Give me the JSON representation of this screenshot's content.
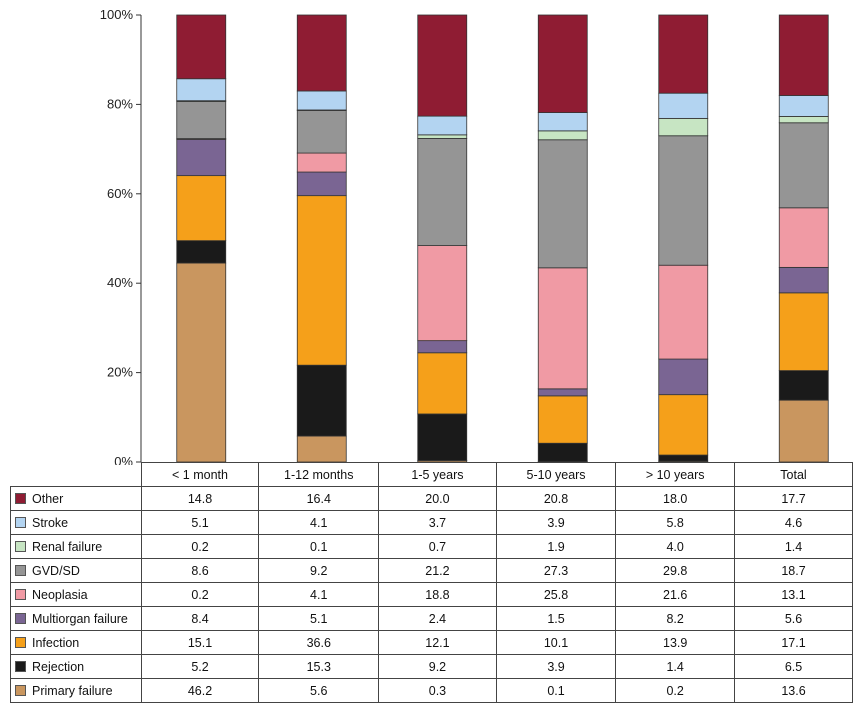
{
  "chart_data": {
    "type": "bar",
    "stacked": true,
    "percent_stacked": true,
    "categories": [
      "< 1 month",
      "1-12 months",
      "1-5 years",
      "5-10 years",
      "> 10 years",
      "Total"
    ],
    "y_ticks": [
      "0%",
      "20%",
      "40%",
      "60%",
      "80%",
      "100%"
    ],
    "ylim": [
      0,
      100
    ],
    "grid": false,
    "legend": "table-left",
    "series": [
      {
        "name": "Primary failure",
        "color": "#c9965f",
        "values": [
          "46.2",
          "5.6",
          "0.3",
          "0.1",
          "0.2",
          "13.6"
        ]
      },
      {
        "name": "Rejection",
        "color": "#1a1a1a",
        "values": [
          "5.2",
          "15.3",
          "9.2",
          "3.9",
          "1.4",
          "6.5"
        ]
      },
      {
        "name": "Infection",
        "color": "#f5a01a",
        "values": [
          "15.1",
          "36.6",
          "12.1",
          "10.1",
          "13.9",
          "17.1"
        ]
      },
      {
        "name": "Multiorgan failure",
        "color": "#7a6593",
        "values": [
          "8.4",
          "5.1",
          "2.4",
          "1.5",
          "8.2",
          "5.6"
        ]
      },
      {
        "name": "Neoplasia",
        "color": "#f09aa4",
        "values": [
          "0.2",
          "4.1",
          "18.8",
          "25.8",
          "21.6",
          "13.1"
        ]
      },
      {
        "name": "GVD/SD",
        "color": "#959595",
        "values": [
          "8.6",
          "9.2",
          "21.2",
          "27.3",
          "29.8",
          "18.7"
        ]
      },
      {
        "name": "Renal failure",
        "color": "#c7e5c3",
        "values": [
          "0.2",
          "0.1",
          "0.7",
          "1.9",
          "4.0",
          "1.4"
        ]
      },
      {
        "name": "Stroke",
        "color": "#b3d4f1",
        "values": [
          "5.1",
          "4.1",
          "3.7",
          "3.9",
          "5.8",
          "4.6"
        ]
      },
      {
        "name": "Other",
        "color": "#8f1c33",
        "values": [
          "14.8",
          "16.4",
          "20.0",
          "20.8",
          "18.0",
          "17.7"
        ]
      }
    ],
    "table_row_order": [
      "Other",
      "Stroke",
      "Renal failure",
      "GVD/SD",
      "Neoplasia",
      "Multiorgan failure",
      "Infection",
      "Rejection",
      "Primary failure"
    ]
  }
}
